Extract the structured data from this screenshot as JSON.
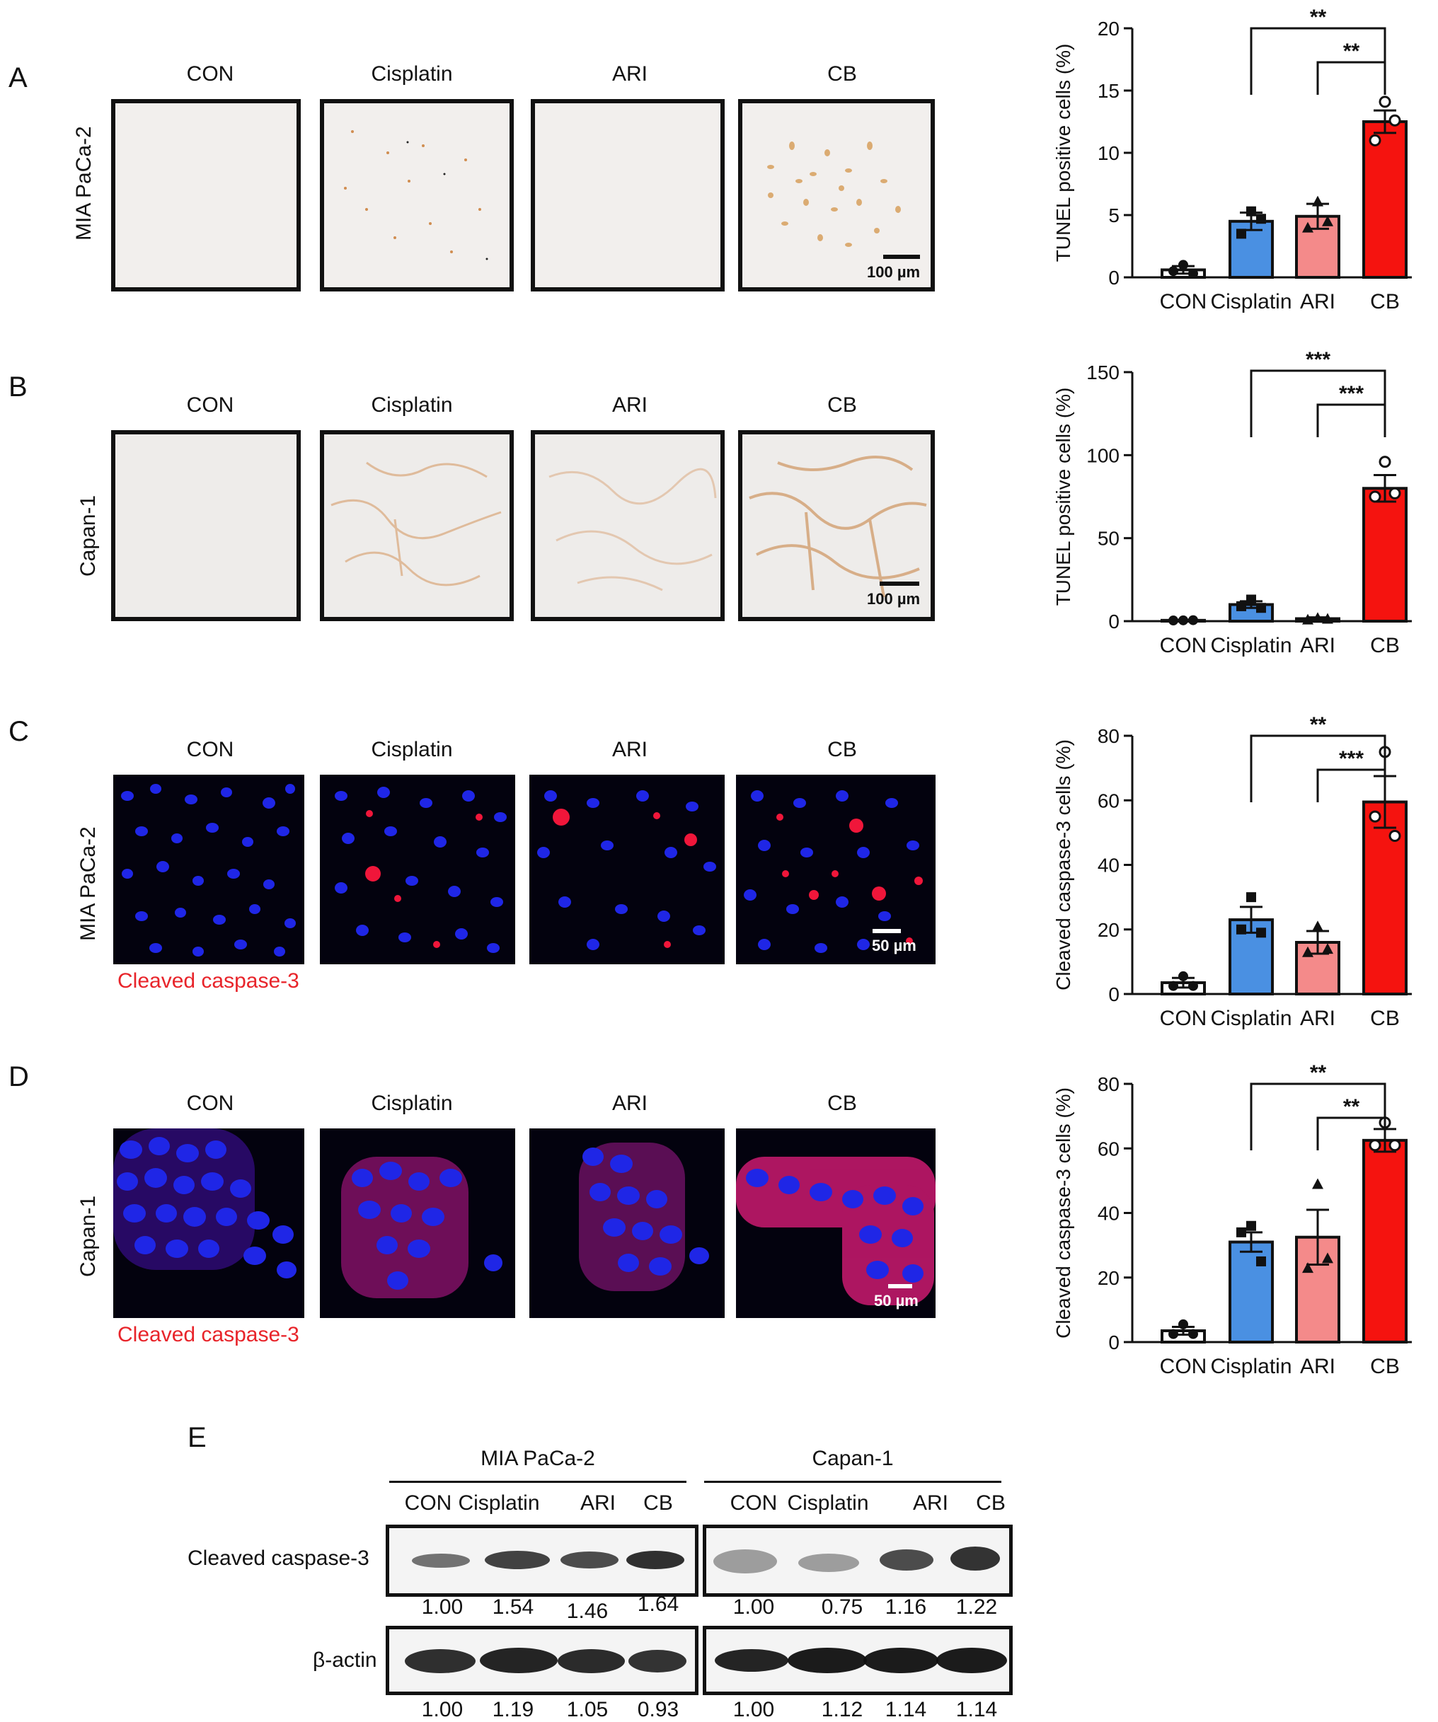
{
  "panels": {
    "A": {
      "letter": "A",
      "cell_line": "MIA PaCa-2",
      "scale": "100 µm"
    },
    "B": {
      "letter": "B",
      "cell_line": "Capan-1",
      "scale": "100 µm"
    },
    "C": {
      "letter": "C",
      "cell_line": "MIA PaCa-2",
      "scale": "50 µm",
      "stain": "Cleaved caspase-3"
    },
    "D": {
      "letter": "D",
      "cell_line": "Capan-1",
      "scale": "50 µm",
      "stain": "Cleaved caspase-3"
    },
    "E": {
      "letter": "E"
    }
  },
  "groups": [
    "CON",
    "Cisplatin",
    "ARI",
    "CB"
  ],
  "colors": {
    "con": "#ffffff",
    "cisplatin": "#4a90e2",
    "ari": "#f48a8a",
    "cb": "#f5130f",
    "red_text": "#e8242a"
  },
  "chart_data": [
    {
      "type": "bar",
      "id": "A",
      "categories": [
        "CON",
        "Cisplatin",
        "ARI",
        "CB"
      ],
      "ylabel": "TUNEL positive cells (%)",
      "ylim": [
        0,
        20
      ],
      "yticks": [
        0,
        5,
        10,
        15,
        20
      ],
      "values": [
        0.6,
        4.5,
        4.9,
        12.5
      ],
      "errors": [
        0.3,
        0.7,
        1.0,
        0.9
      ],
      "points": [
        [
          1.0,
          0.5,
          0.3
        ],
        [
          5.3,
          3.5,
          4.7
        ],
        [
          6.1,
          4.0,
          4.5
        ],
        [
          14.1,
          11.0,
          12.6
        ]
      ],
      "markers": [
        "circle",
        "square",
        "triangle",
        "open-circle"
      ],
      "significance": [
        {
          "from": 1,
          "to": 3,
          "label": "**"
        },
        {
          "from": 2,
          "to": 3,
          "label": "**"
        }
      ]
    },
    {
      "type": "bar",
      "id": "B",
      "categories": [
        "CON",
        "Cisplatin",
        "ARI",
        "CB"
      ],
      "ylabel": "TUNEL positive cells (%)",
      "ylim": [
        0,
        150
      ],
      "yticks": [
        0,
        50,
        100,
        150
      ],
      "values": [
        0.5,
        10,
        1.5,
        80
      ],
      "errors": [
        0.3,
        2.0,
        0.8,
        8.0
      ],
      "points": [
        [
          0.5,
          0.4,
          0.6
        ],
        [
          13,
          9,
          8
        ],
        [
          2,
          1,
          1.5
        ],
        [
          96,
          75,
          77
        ]
      ],
      "markers": [
        "circle",
        "square",
        "triangle",
        "open-circle"
      ],
      "significance": [
        {
          "from": 1,
          "to": 3,
          "label": "***"
        },
        {
          "from": 2,
          "to": 3,
          "label": "***"
        }
      ]
    },
    {
      "type": "bar",
      "id": "C",
      "categories": [
        "CON",
        "Cisplatin",
        "ARI",
        "CB"
      ],
      "ylabel": "Cleaved caspase-3 cells (%)",
      "ylim": [
        0,
        80
      ],
      "yticks": [
        0,
        20,
        40,
        60,
        80
      ],
      "values": [
        3.5,
        23,
        16,
        59.5
      ],
      "errors": [
        1.5,
        4.0,
        3.5,
        8.0
      ],
      "points": [
        [
          5.5,
          2.5,
          2.5
        ],
        [
          30,
          20,
          19
        ],
        [
          21,
          13,
          14
        ],
        [
          75,
          55,
          49
        ]
      ],
      "markers": [
        "circle",
        "square",
        "triangle",
        "open-circle"
      ],
      "significance": [
        {
          "from": 1,
          "to": 3,
          "label": "**"
        },
        {
          "from": 2,
          "to": 3,
          "label": "***"
        }
      ]
    },
    {
      "type": "bar",
      "id": "D",
      "categories": [
        "CON",
        "Cisplatin",
        "ARI",
        "CB"
      ],
      "ylabel": "Cleaved caspase-3 cells (%)",
      "ylim": [
        0,
        80
      ],
      "yticks": [
        0,
        20,
        40,
        60,
        80
      ],
      "values": [
        3.5,
        31,
        32.5,
        62.5
      ],
      "errors": [
        1.2,
        3.0,
        8.5,
        3.5
      ],
      "points": [
        [
          5.5,
          2.5,
          2.5
        ],
        [
          36,
          34,
          25
        ],
        [
          49,
          23,
          26
        ],
        [
          68,
          61,
          61
        ]
      ],
      "markers": [
        "circle",
        "square",
        "triangle",
        "open-circle"
      ],
      "significance": [
        {
          "from": 1,
          "to": 3,
          "label": "**"
        },
        {
          "from": 2,
          "to": 3,
          "label": "**"
        }
      ]
    }
  ],
  "blot": {
    "groups": [
      "MIA PaCa-2",
      "Capan-1"
    ],
    "lanes": [
      "CON",
      "Cisplatin",
      "ARI",
      "CB",
      "CON",
      "Cisplatin",
      "ARI",
      "CB"
    ],
    "rows": [
      {
        "label": "Cleaved caspase-3",
        "values": [
          "1.00",
          "1.54",
          "1.46",
          "1.64",
          "1.00",
          "0.75",
          "1.16",
          "1.22"
        ]
      },
      {
        "label": "β-actin",
        "values": [
          "1.00",
          "1.19",
          "1.05",
          "0.93",
          "1.00",
          "1.12",
          "1.14",
          "1.14"
        ]
      }
    ]
  }
}
